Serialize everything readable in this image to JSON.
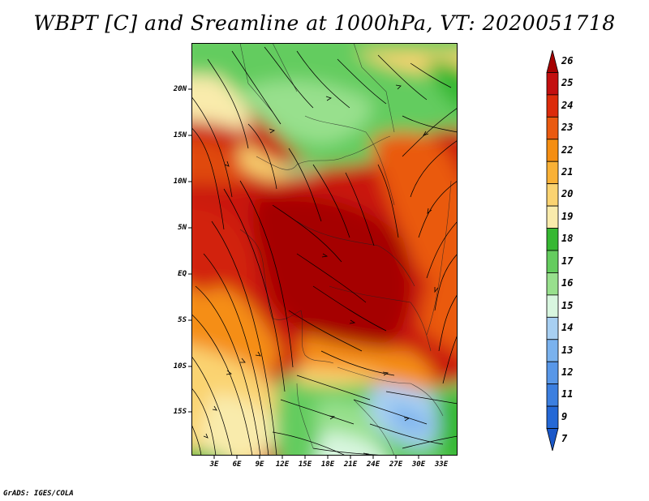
{
  "title": "WBPT [C] and Sreamline at 1000hPa, VT: 2020051718",
  "credit": "GrADS: IGES/COLA",
  "map": {
    "lat_labels": [
      "20N",
      "15N",
      "10N",
      "5N",
      "EQ",
      "5S",
      "10S",
      "15S"
    ],
    "lon_labels": [
      "3E",
      "6E",
      "9E",
      "12E",
      "15E",
      "18E",
      "21E",
      "24E",
      "27E",
      "30E",
      "33E"
    ]
  },
  "colorbar": {
    "labels": [
      "26",
      "25",
      "24",
      "23",
      "22",
      "21",
      "20",
      "19",
      "18",
      "17",
      "16",
      "15",
      "14",
      "13",
      "12",
      "11",
      "9",
      "7"
    ],
    "colors": [
      "#a50000",
      "#c30f0f",
      "#dc2b0b",
      "#ea5a10",
      "#f58e12",
      "#f9b136",
      "#fad371",
      "#f9ebac",
      "#36b832",
      "#64cc5e",
      "#98e08d",
      "#d8f6df",
      "#a7cff2",
      "#7ab2ee",
      "#5897e8",
      "#3c7fe0",
      "#2468d6",
      "#1a57c8"
    ]
  }
}
